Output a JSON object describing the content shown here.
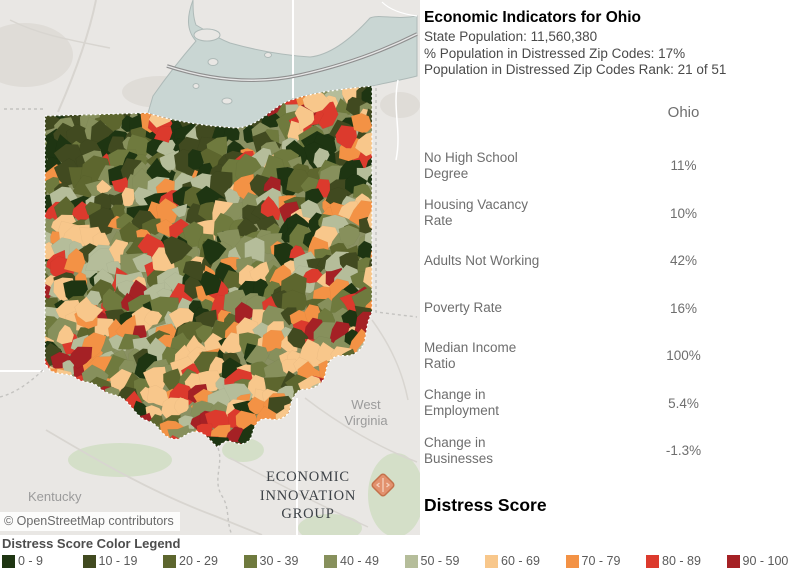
{
  "map": {
    "attribution": "© OpenStreetMap contributors",
    "labels": {
      "kentucky": "Kentucky",
      "west_virginia_line1": "West",
      "west_virginia_line2": "Virginia"
    },
    "logo": {
      "line1": "ECONOMIC",
      "line2": "INNOVATION",
      "line3": "GROUP"
    },
    "colors": {
      "land": "#e9e7e4",
      "land_shade": "#dfdcd7",
      "lake": "#c9d6d3",
      "shoreline": "#aebab8",
      "forest": "#d4dfc8",
      "road": "#d8d5d0",
      "border_dash": "#c4c3c0",
      "state_label": "#9b9b9b",
      "logo_orange": "#e2916e",
      "logo_orange_border": "#c4714b"
    }
  },
  "panel": {
    "title": "Economic Indicators for Ohio",
    "subtitle_lines": [
      "State Population: 11,560,380",
      "% Population in Distressed Zip Codes: 17%",
      "Population in Distressed Zip Codes Rank: 21 of 51"
    ],
    "column_header": "Ohio",
    "rows": [
      {
        "label": "No High School Degree",
        "value": "11%"
      },
      {
        "label": "Housing Vacancy Rate",
        "value": "10%"
      },
      {
        "label": "Adults Not Working",
        "value": "42%"
      },
      {
        "label": "Poverty Rate",
        "value": "16%"
      },
      {
        "label": "Median Income Ratio",
        "value": "100%"
      },
      {
        "label": "Change in Employment",
        "value": "5.4%"
      },
      {
        "label": "Change in Businesses",
        "value": "-1.3%"
      }
    ],
    "section_heading": "Distress Score"
  },
  "legend": {
    "title": "Distress Score Color Legend",
    "bins": [
      {
        "label": "0 - 9",
        "color": "#1e3512"
      },
      {
        "label": "10 - 19",
        "color": "#414a20"
      },
      {
        "label": "20 - 29",
        "color": "#5d662e"
      },
      {
        "label": "30 - 39",
        "color": "#6f7a3e"
      },
      {
        "label": "40 - 49",
        "color": "#87905c"
      },
      {
        "label": "50 - 59",
        "color": "#b5bd9a"
      },
      {
        "label": "60 - 69",
        "color": "#f8c78b"
      },
      {
        "label": "70 - 79",
        "color": "#f39245"
      },
      {
        "label": "80 - 89",
        "color": "#dc3a2d"
      },
      {
        "label": "90 - 100",
        "color": "#a52125"
      }
    ]
  }
}
